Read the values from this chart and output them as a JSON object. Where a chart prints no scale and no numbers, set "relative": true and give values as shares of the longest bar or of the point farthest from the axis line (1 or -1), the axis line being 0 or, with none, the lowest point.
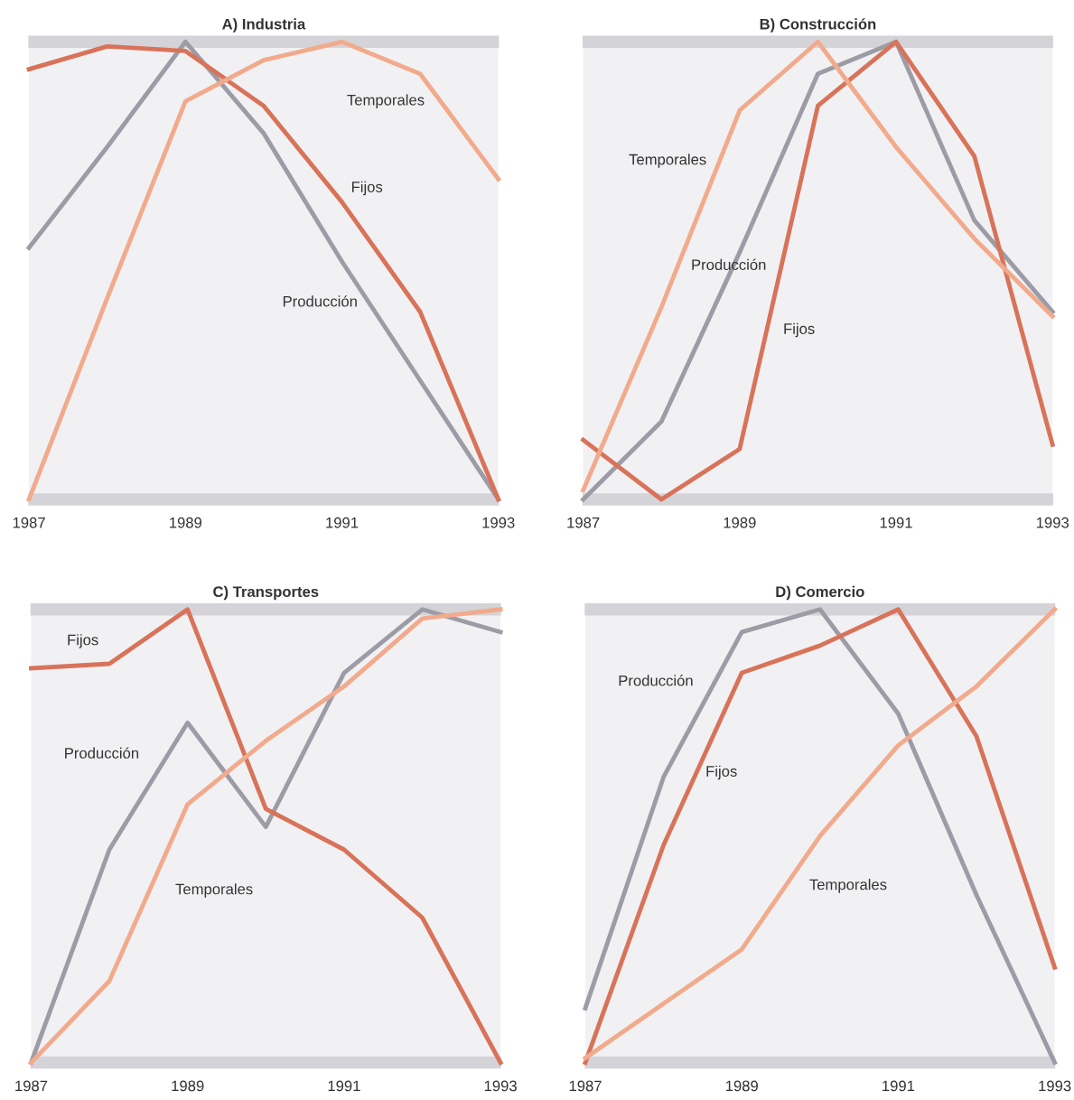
{
  "chart_data": [
    {
      "type": "line",
      "title": "A) Industria",
      "relative": true,
      "x": [
        1987,
        1988,
        1989,
        1990,
        1991,
        1992,
        1993
      ],
      "xlim": [
        1987,
        1993
      ],
      "xticks": [
        1987,
        1989,
        1991,
        1993
      ],
      "tick_labels": "x",
      "grid": false,
      "legend": false,
      "marker": "none",
      "line_style": "solid",
      "series": [
        {
          "name": "Producción",
          "color": "#9d9ca6",
          "values": [
            0.55,
            0.77,
            1.0,
            0.8,
            0.52,
            0.26,
            0
          ]
        },
        {
          "name": "Fijos",
          "color": "#d8735a",
          "values": [
            0.94,
            0.99,
            0.98,
            0.86,
            0.65,
            0.41,
            0
          ]
        },
        {
          "name": "Temporales",
          "color": "#f2aa8c",
          "values": [
            0,
            0.44,
            0.87,
            0.96,
            1.0,
            0.93,
            0.7
          ]
        }
      ]
    },
    {
      "type": "line",
      "title": "B) Construcción",
      "relative": true,
      "x": [
        1987,
        1988,
        1989,
        1990,
        1991,
        1992,
        1993
      ],
      "xlim": [
        1987,
        1993
      ],
      "xticks": [
        1987,
        1989,
        1991,
        1993
      ],
      "tick_labels": "x",
      "grid": false,
      "legend": false,
      "marker": "none",
      "line_style": "solid",
      "series": [
        {
          "name": "Producción",
          "color": "#9d9ca6",
          "values": [
            0,
            0.17,
            0.54,
            0.93,
            1.0,
            0.61,
            0.41
          ]
        },
        {
          "name": "Fijos",
          "color": "#d8735a",
          "values": [
            0.13,
            0,
            0.11,
            0.86,
            1.0,
            0.75,
            0.12
          ]
        },
        {
          "name": "Temporales",
          "color": "#f2aa8c",
          "values": [
            0.02,
            0.42,
            0.85,
            1.0,
            0.77,
            0.57,
            0.4
          ]
        }
      ]
    },
    {
      "type": "line",
      "title": "C) Transportes",
      "relative": true,
      "x": [
        1987,
        1988,
        1989,
        1990,
        1991,
        1992,
        1993
      ],
      "xlim": [
        1987,
        1993
      ],
      "xticks": [
        1987,
        1989,
        1991,
        1993
      ],
      "tick_labels": "x",
      "grid": false,
      "legend": false,
      "marker": "none",
      "line_style": "solid",
      "series": [
        {
          "name": "Producción",
          "color": "#9d9ca6",
          "values": [
            0,
            0.47,
            0.75,
            0.52,
            0.86,
            1.0,
            0.95
          ]
        },
        {
          "name": "Fijos",
          "color": "#d8735a",
          "values": [
            0.87,
            0.88,
            1.0,
            0.56,
            0.47,
            0.32,
            0
          ]
        },
        {
          "name": "Temporales",
          "color": "#f2aa8c",
          "values": [
            0,
            0.18,
            0.57,
            0.71,
            0.83,
            0.98,
            1.0
          ]
        }
      ]
    },
    {
      "type": "line",
      "title": "D) Comercio",
      "relative": true,
      "x": [
        1987,
        1988,
        1989,
        1990,
        1991,
        1992,
        1993
      ],
      "xlim": [
        1987,
        1993
      ],
      "xticks": [
        1987,
        1989,
        1991,
        1993
      ],
      "tick_labels": "x",
      "grid": false,
      "legend": false,
      "marker": "none",
      "line_style": "solid",
      "series": [
        {
          "name": "Producción",
          "color": "#9d9ca6",
          "values": [
            0.12,
            0.63,
            0.95,
            1.0,
            0.77,
            0.37,
            0
          ]
        },
        {
          "name": "Fijos",
          "color": "#d8735a",
          "values": [
            0,
            0.48,
            0.86,
            0.92,
            1.0,
            0.72,
            0.21
          ]
        },
        {
          "name": "Temporales",
          "color": "#f2aa8c",
          "values": [
            0.01,
            0.13,
            0.25,
            0.5,
            0.7,
            0.83,
            1.0
          ]
        }
      ]
    }
  ]
}
